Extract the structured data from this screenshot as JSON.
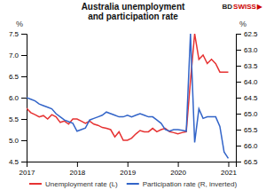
{
  "chart_data": {
    "type": "line",
    "title": "Australia unemployment\nand participation rate",
    "y_label": "%",
    "y2_label": "%",
    "x": [
      2017.0,
      2017.083,
      2017.167,
      2017.25,
      2017.333,
      2017.417,
      2017.5,
      2017.583,
      2017.667,
      2017.75,
      2017.833,
      2017.917,
      2018.0,
      2018.083,
      2018.167,
      2018.25,
      2018.333,
      2018.417,
      2018.5,
      2018.583,
      2018.667,
      2018.75,
      2018.833,
      2018.917,
      2019.0,
      2019.083,
      2019.167,
      2019.25,
      2019.333,
      2019.417,
      2019.5,
      2019.583,
      2019.667,
      2019.75,
      2019.833,
      2019.917,
      2020.0,
      2020.083,
      2020.167,
      2020.25,
      2020.333,
      2020.417,
      2020.5,
      2020.583,
      2020.667,
      2020.75,
      2020.833,
      2020.917,
      2021.0
    ],
    "xlim": [
      2017.0,
      2021.15
    ],
    "xticks": [
      2017,
      2018,
      2019,
      2020,
      2021
    ],
    "ylim": [
      4.5,
      7.5
    ],
    "yticks": [
      4.5,
      {
        "value": 5.0,
        "label": "5.0"
      },
      5.5,
      {
        "value": 6.0,
        "label": "6.0"
      },
      6.5,
      {
        "value": 7.0,
        "label": "7.0"
      },
      7.5
    ],
    "y2lim": [
      66.5,
      62.5
    ],
    "y2ticks": [
      62.5,
      {
        "value": 63.0,
        "label": "63.0"
      },
      63.5,
      {
        "value": 64.0,
        "label": "64.0"
      },
      64.5,
      {
        "value": 65.0,
        "label": "65.0"
      },
      65.5,
      {
        "value": 66.0,
        "label": "66.0"
      },
      66.5
    ],
    "series": [
      {
        "name": "Unemployment rate (L)",
        "color": "#e63232",
        "axis": "y",
        "values": [
          5.75,
          5.65,
          5.6,
          5.55,
          5.58,
          5.5,
          5.6,
          5.55,
          5.42,
          5.45,
          5.38,
          5.5,
          5.5,
          5.45,
          5.4,
          5.45,
          5.38,
          5.35,
          5.3,
          5.28,
          5.25,
          5.08,
          5.2,
          5.0,
          5.0,
          5.05,
          5.15,
          5.23,
          5.2,
          5.2,
          5.28,
          5.2,
          5.25,
          5.28,
          5.2,
          5.18,
          5.15,
          5.18,
          5.2,
          6.4,
          7.5,
          6.9,
          7.0,
          6.8,
          6.9,
          6.8,
          6.6,
          6.6,
          6.6
        ]
      },
      {
        "name": "Participation rate (R, inverted)",
        "color": "#3264c8",
        "axis": "y2",
        "values": [
          64.5,
          64.55,
          64.6,
          64.7,
          64.75,
          64.8,
          64.85,
          65.0,
          65.1,
          65.2,
          65.25,
          65.3,
          65.55,
          65.5,
          65.45,
          65.2,
          65.15,
          65.1,
          65.05,
          64.95,
          65.0,
          65.05,
          65.1,
          65.1,
          65.05,
          65.1,
          65.05,
          65.0,
          65.05,
          65.1,
          65.1,
          65.2,
          65.3,
          65.5,
          65.55,
          65.5,
          65.5,
          65.52,
          65.55,
          62.5,
          65.9,
          64.85,
          65.15,
          65.1,
          65.1,
          65.1,
          65.4,
          66.2,
          66.4
        ]
      }
    ],
    "annotations": [
      {
        "text": "BD",
        "color": "#222222"
      },
      {
        "text": "SWISS",
        "color": "#cc0000"
      },
      {
        "text": "▶",
        "color": "#cc0000"
      }
    ],
    "legend": "bottom",
    "grid": false
  }
}
